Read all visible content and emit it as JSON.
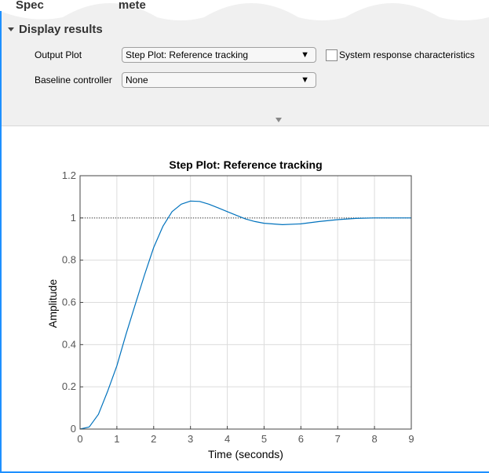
{
  "header": {
    "cut_title_left": "Spec",
    "cut_title_right": "mete"
  },
  "section": {
    "title": "Display results",
    "expanded": true
  },
  "form": {
    "output_plot_label": "Output Plot",
    "output_plot_value": "Step Plot: Reference tracking",
    "checkbox_label": "System response characteristics",
    "checkbox_checked": false,
    "baseline_label": "Baseline controller",
    "baseline_value": "None"
  },
  "icons": {
    "dropdown": "triangle-down-icon",
    "section": "caret-down-icon",
    "collapse": "collapse-arrow-icon"
  },
  "colors": {
    "accent": "#1e90ff",
    "series": "#0072bd",
    "panel": "#f0f0f0"
  },
  "chart_data": {
    "type": "line",
    "title": "Step Plot: Reference tracking",
    "xlabel": "Time (seconds)",
    "ylabel": "Amplitude",
    "xlim": [
      0,
      9
    ],
    "ylim": [
      0,
      1.2
    ],
    "xticks": [
      "0",
      "1",
      "2",
      "3",
      "4",
      "5",
      "6",
      "7",
      "8",
      "9"
    ],
    "yticks": [
      "0",
      "0.2",
      "0.4",
      "0.6",
      "0.8",
      "1",
      "1.2"
    ],
    "grid": true,
    "reference_line": 1,
    "series": [
      {
        "x": [
          0,
          0.25,
          0.5,
          0.75,
          1,
          1.25,
          1.5,
          1.75,
          2,
          2.25,
          2.5,
          2.75,
          3,
          3.25,
          3.5,
          3.75,
          4,
          4.25,
          4.5,
          4.75,
          5,
          5.5,
          6,
          6.5,
          7,
          7.5,
          8,
          8.5,
          9
        ],
        "y": [
          0,
          0.01,
          0.07,
          0.18,
          0.3,
          0.45,
          0.59,
          0.73,
          0.86,
          0.96,
          1.03,
          1.065,
          1.08,
          1.078,
          1.065,
          1.048,
          1.03,
          1.012,
          0.995,
          0.983,
          0.975,
          0.968,
          0.972,
          0.983,
          0.992,
          0.998,
          1.0,
          1.0,
          1.0
        ]
      }
    ]
  }
}
